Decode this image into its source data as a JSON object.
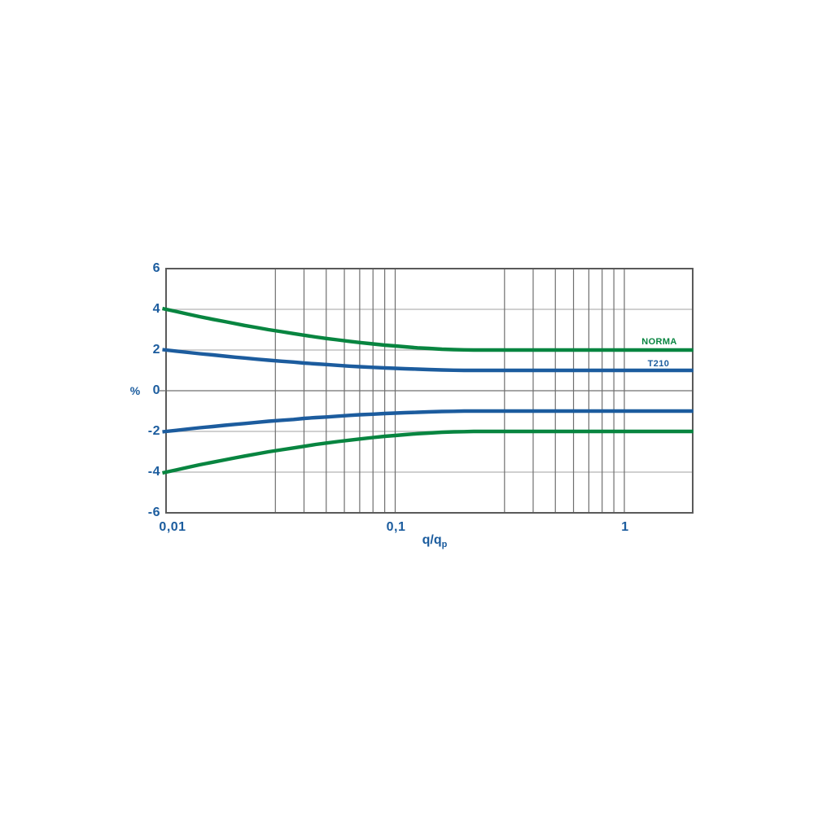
{
  "chart_data": {
    "type": "line",
    "title": "",
    "ylabel": "%",
    "xlabel_main": "q/q",
    "xlabel_sub": "p",
    "x_scale": "log",
    "xlim": [
      0.01,
      2
    ],
    "ylim": [
      -6,
      6
    ],
    "grid": true,
    "legend_position": "right-inside-above-lines",
    "colors": {
      "curve_green": "#088540",
      "curve_blue": "#1c5c9e",
      "text_blue": "#1b5c9e",
      "grid_light": "#b3b3b3",
      "grid_dark": "#6f6f6f",
      "border": "#5a5a5a"
    },
    "x_ticks": [
      {
        "value": 0.01,
        "label": "0,01"
      },
      {
        "value": 0.1,
        "label": "0,1"
      },
      {
        "value": 1,
        "label": "1"
      }
    ],
    "y_ticks": [
      {
        "value": 6,
        "label": "6"
      },
      {
        "value": 4,
        "label": "4"
      },
      {
        "value": 2,
        "label": "2"
      },
      {
        "value": 0,
        "label": "0"
      },
      {
        "value": -2,
        "label": "-2"
      },
      {
        "value": -4,
        "label": "-4"
      },
      {
        "value": -6,
        "label": "-6"
      }
    ],
    "x_gridlines": [
      0.03,
      0.04,
      0.05,
      0.06,
      0.07,
      0.08,
      0.09,
      0.1,
      0.3,
      0.4,
      0.5,
      0.6,
      0.7,
      0.8,
      0.9,
      1
    ],
    "x_samples": [
      0.01,
      0.011,
      0.0125,
      0.014,
      0.016,
      0.018,
      0.02,
      0.022,
      0.025,
      0.028,
      0.032,
      0.036,
      0.04,
      0.045,
      0.05,
      0.056,
      0.063,
      0.07,
      0.08,
      0.09,
      0.1,
      0.11,
      0.125,
      0.14,
      0.16,
      0.18,
      0.2,
      0.22,
      0.25,
      0.3,
      0.4,
      0.5,
      0.7,
      1,
      1.5,
      2
    ],
    "series": [
      {
        "name": "NORMA upper limit",
        "legend": "NORMA",
        "color_key": "curve_green",
        "asymptote": 2,
        "start_value": 4,
        "y": [
          4.0,
          3.9,
          3.76,
          3.64,
          3.51,
          3.4,
          3.3,
          3.21,
          3.1,
          3.0,
          2.9,
          2.81,
          2.73,
          2.64,
          2.57,
          2.5,
          2.43,
          2.37,
          2.3,
          2.24,
          2.2,
          2.16,
          2.11,
          2.08,
          2.04,
          2.02,
          2.01,
          2.0,
          2.0,
          2.0,
          2.0,
          2.0,
          2.0,
          2.0,
          2.0,
          2.0
        ]
      },
      {
        "name": "T210 upper limit",
        "legend": "T210",
        "color_key": "curve_blue",
        "asymptote": 1,
        "start_value": 2,
        "y": [
          2.0,
          1.95,
          1.88,
          1.82,
          1.76,
          1.7,
          1.65,
          1.61,
          1.55,
          1.5,
          1.45,
          1.41,
          1.36,
          1.32,
          1.29,
          1.25,
          1.21,
          1.18,
          1.15,
          1.12,
          1.1,
          1.08,
          1.06,
          1.04,
          1.02,
          1.01,
          1.0,
          1.0,
          1.0,
          1.0,
          1.0,
          1.0,
          1.0,
          1.0,
          1.0,
          1.0
        ]
      },
      {
        "name": "T210 lower limit",
        "legend": "T210",
        "color_key": "curve_blue",
        "asymptote": -1,
        "start_value": -2,
        "y": [
          -2.0,
          -1.95,
          -1.88,
          -1.82,
          -1.76,
          -1.7,
          -1.65,
          -1.61,
          -1.55,
          -1.5,
          -1.45,
          -1.41,
          -1.36,
          -1.32,
          -1.29,
          -1.25,
          -1.21,
          -1.18,
          -1.15,
          -1.12,
          -1.1,
          -1.08,
          -1.06,
          -1.04,
          -1.02,
          -1.01,
          -1.0,
          -1.0,
          -1.0,
          -1.0,
          -1.0,
          -1.0,
          -1.0,
          -1.0,
          -1.0,
          -1.0
        ]
      },
      {
        "name": "NORMA lower limit",
        "legend": "NORMA",
        "color_key": "curve_green",
        "asymptote": -2,
        "start_value": -4,
        "y": [
          -4.0,
          -3.9,
          -3.76,
          -3.64,
          -3.51,
          -3.4,
          -3.3,
          -3.21,
          -3.1,
          -3.0,
          -2.9,
          -2.81,
          -2.73,
          -2.64,
          -2.57,
          -2.5,
          -2.43,
          -2.37,
          -2.3,
          -2.24,
          -2.2,
          -2.16,
          -2.11,
          -2.08,
          -2.04,
          -2.02,
          -2.01,
          -2.0,
          -2.0,
          -2.0,
          -2.0,
          -2.0,
          -2.0,
          -2.0,
          -2.0,
          -2.0
        ]
      }
    ],
    "legend": [
      {
        "label": "NORMA",
        "color_key": "curve_green"
      },
      {
        "label": "T210",
        "color_key": "curve_blue"
      }
    ]
  }
}
